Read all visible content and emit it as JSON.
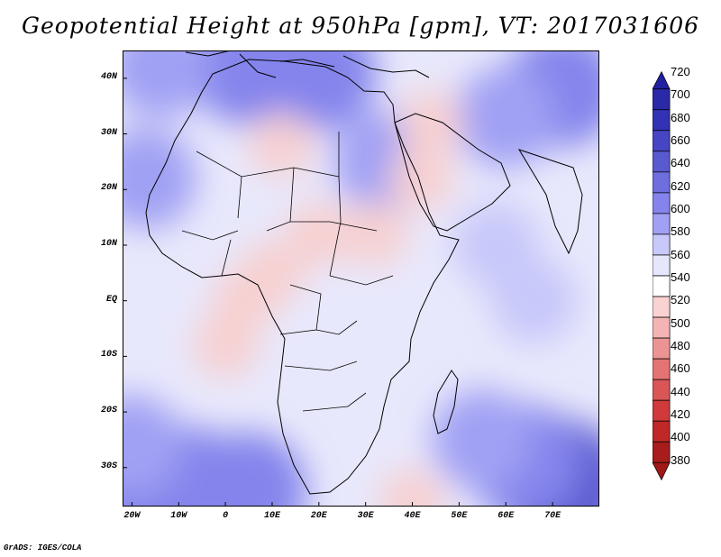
{
  "title": "Geopotential Height at 950hPa [gpm], VT: 2017031606",
  "footer": "GrADS: IGES/COLA",
  "map": {
    "lon_range": [
      -22,
      80
    ],
    "lat_range": [
      -37,
      45
    ],
    "background_color": "#ffffff",
    "coast_color": "#000000"
  },
  "axes": {
    "x_ticks": [
      {
        "lon": -20,
        "label": "20W"
      },
      {
        "lon": -10,
        "label": "10W"
      },
      {
        "lon": 0,
        "label": "0"
      },
      {
        "lon": 10,
        "label": "10E"
      },
      {
        "lon": 20,
        "label": "20E"
      },
      {
        "lon": 30,
        "label": "30E"
      },
      {
        "lon": 40,
        "label": "40E"
      },
      {
        "lon": 50,
        "label": "50E"
      },
      {
        "lon": 60,
        "label": "60E"
      },
      {
        "lon": 70,
        "label": "70E"
      }
    ],
    "y_ticks": [
      {
        "lat": 40,
        "label": "40N"
      },
      {
        "lat": 30,
        "label": "30N"
      },
      {
        "lat": 20,
        "label": "20N"
      },
      {
        "lat": 10,
        "label": "10N"
      },
      {
        "lat": 0,
        "label": "EQ"
      },
      {
        "lat": -10,
        "label": "10S"
      },
      {
        "lat": -20,
        "label": "20S"
      },
      {
        "lat": -30,
        "label": "30S"
      }
    ]
  },
  "colorbar": {
    "labels": [
      "720",
      "700",
      "680",
      "660",
      "640",
      "620",
      "600",
      "580",
      "560",
      "540",
      "520",
      "500",
      "480",
      "460",
      "440",
      "420",
      "400",
      "380"
    ],
    "colors": [
      "#2a2aa8",
      "#3232b4",
      "#4646c4",
      "#5a5ad0",
      "#6e6ede",
      "#8484ec",
      "#a0a0f4",
      "#c8c8fa",
      "#e6e6fc",
      "#ffffff",
      "#fad2d2",
      "#f4b4b4",
      "#ec9494",
      "#e47474",
      "#da5656",
      "#d03a3a",
      "#c02828",
      "#a81c1c"
    ],
    "top_arrow_color": "#2020a0",
    "bottom_arrow_color": "#a01818"
  },
  "fields": {
    "cold": [
      {
        "lon": -19,
        "lat": -35,
        "level": 3
      },
      {
        "lon": -8,
        "lat": -33,
        "level": 3
      },
      {
        "lon": 5,
        "lat": -34,
        "level": 3
      },
      {
        "lon": -20,
        "lat": -26,
        "level": 2
      },
      {
        "lon": 72,
        "lat": -33,
        "level": 4
      },
      {
        "lon": 64,
        "lat": -29,
        "level": 3
      },
      {
        "lon": 55,
        "lat": -25,
        "level": 2
      },
      {
        "lon": 5,
        "lat": 42,
        "level": 3
      },
      {
        "lon": 20,
        "lat": 41,
        "level": 3
      },
      {
        "lon": -14,
        "lat": 42,
        "level": 2
      },
      {
        "lon": 72,
        "lat": 38,
        "level": 3
      },
      {
        "lon": 60,
        "lat": 33,
        "level": 2
      },
      {
        "lon": 34,
        "lat": 25,
        "level": 2
      },
      {
        "lon": -17,
        "lat": 22,
        "level": 2
      },
      {
        "lon": 58,
        "lat": 10,
        "level": 1
      },
      {
        "lon": 66,
        "lat": 0,
        "level": 1
      }
    ],
    "warm": [
      {
        "lon": 12,
        "lat": 28,
        "level": 1
      },
      {
        "lon": 20,
        "lat": 12,
        "level": 1
      },
      {
        "lon": 32,
        "lat": 12,
        "level": 1
      },
      {
        "lon": 42,
        "lat": 22,
        "level": 1
      },
      {
        "lon": 44,
        "lat": 32,
        "level": 1
      },
      {
        "lon": 4,
        "lat": 0,
        "level": 1
      },
      {
        "lon": 0,
        "lat": -8,
        "level": 1
      },
      {
        "lon": 10,
        "lat": 5,
        "level": 1
      },
      {
        "lon": 40,
        "lat": -36,
        "level": 1
      }
    ]
  }
}
